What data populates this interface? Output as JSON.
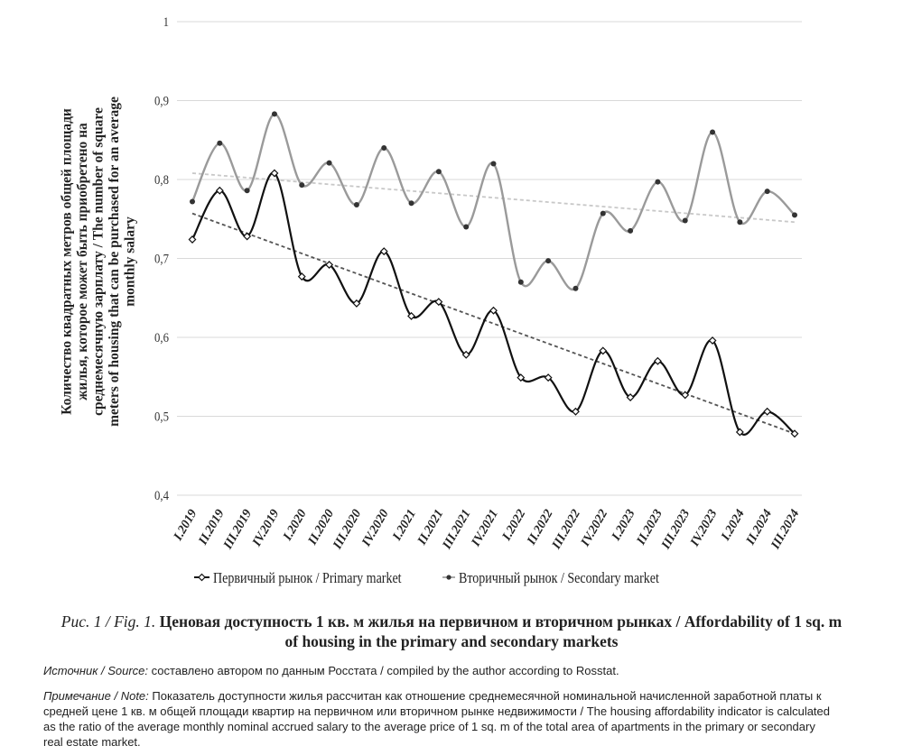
{
  "chart_data": {
    "type": "line",
    "ylabel_lines": [
      "Количество квадратных метров общей площади",
      "жилья, которое может быть приобретено на",
      "среднемесячную зарплату / The number of square",
      "meters of housing that can be purchased for an average",
      "monthly salary"
    ],
    "ylim": [
      0.4,
      1.0
    ],
    "yticks": [
      0.4,
      0.5,
      0.6,
      0.7,
      0.8,
      0.9,
      1.0
    ],
    "ytick_labels": [
      "0,4",
      "0,5",
      "0,6",
      "0,7",
      "0,8",
      "0,9",
      "1"
    ],
    "categories": [
      "I.2019",
      "II.2019",
      "III.2019",
      "IV.2019",
      "I.2020",
      "II.2020",
      "III.2020",
      "IV.2020",
      "I.2021",
      "II.2021",
      "III.2021",
      "IV.2021",
      "I.2022",
      "II.2022",
      "III.2022",
      "IV.2022",
      "I.2023",
      "II.2023",
      "III.2023",
      "IV.2023",
      "I.2024",
      "II.2024",
      "III.2024"
    ],
    "series": [
      {
        "name": "Первичный рынок / Primary market",
        "color": "#111111",
        "marker": "diamond",
        "values": [
          0.724,
          0.786,
          0.728,
          0.808,
          0.677,
          0.692,
          0.643,
          0.709,
          0.627,
          0.645,
          0.578,
          0.634,
          0.549,
          0.549,
          0.506,
          0.583,
          0.524,
          0.57,
          0.527,
          0.596,
          0.48,
          0.506,
          0.478
        ],
        "trend": [
          0.757,
          0.478
        ]
      },
      {
        "name": "Вторичный рынок / Secondary market",
        "color": "#9a9a9a",
        "marker": "dot",
        "values": [
          0.772,
          0.846,
          0.786,
          0.883,
          0.793,
          0.821,
          0.768,
          0.84,
          0.77,
          0.81,
          0.74,
          0.82,
          0.67,
          0.697,
          0.662,
          0.757,
          0.735,
          0.797,
          0.748,
          0.86,
          0.746,
          0.785,
          0.755
        ],
        "trend": [
          0.808,
          0.746
        ]
      }
    ]
  },
  "caption": {
    "prefix": "Рис. 1 / Fig. 1.",
    "title": "Ценовая доступность 1 кв. м жилья на первичном и вторичном рынках / Affordability of 1 sq. m of housing in the primary and secondary markets"
  },
  "source": {
    "label": "Источник / Source:",
    "text": "составлено автором по данным Росстата / compiled by the author according to Rosstat."
  },
  "note": {
    "label": "Примечание / Note:",
    "text": "Показатель доступности жилья рассчитан как отношение среднемесячной номинальной начисленной заработной платы к средней цене 1 кв. м общей площади квартир на первичном или вторичном рынке недвижимости / The housing affordability indicator is calculated as the ratio of the average monthly nominal accrued salary to the average price of 1 sq. m of the total area of apartments in the primary or secondary real estate market."
  }
}
